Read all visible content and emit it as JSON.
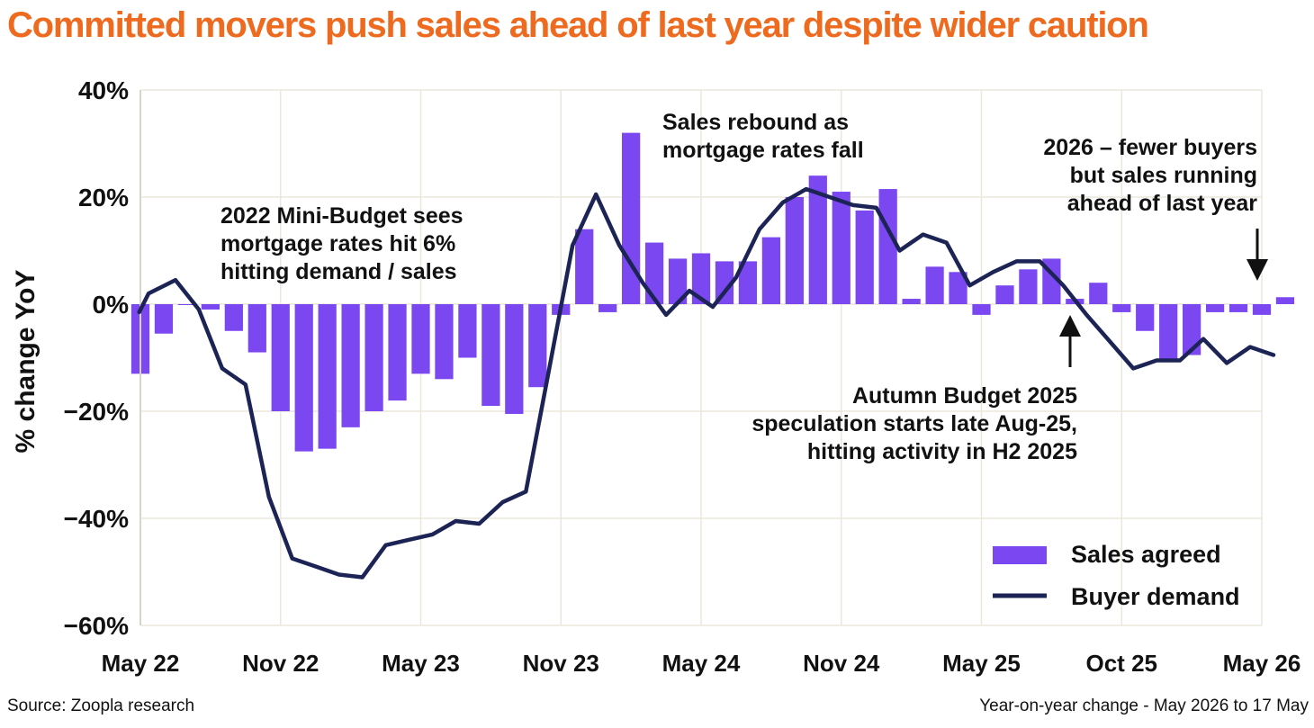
{
  "title": "Committed movers push sales ahead of last year despite wider caution",
  "footer": {
    "source": "Source: Zoopla research",
    "note": "Year-on-year change - May 2026 to 17 May"
  },
  "chart_data": {
    "type": "bar+line",
    "ylabel": "% change YoY",
    "ylim": [
      -60,
      40
    ],
    "xlim": [
      0,
      48
    ],
    "yticks": [
      {
        "value": 40,
        "label": "40%"
      },
      {
        "value": 20,
        "label": "20%"
      },
      {
        "value": 0,
        "label": "0%"
      },
      {
        "value": -20,
        "label": "−20%"
      },
      {
        "value": -40,
        "label": "−40%"
      },
      {
        "value": -60,
        "label": "−60%"
      }
    ],
    "xticks": [
      {
        "month_index": 0,
        "label": "May 22"
      },
      {
        "month_index": 6,
        "label": "Nov 22"
      },
      {
        "month_index": 12,
        "label": "May 23"
      },
      {
        "month_index": 18,
        "label": "Nov 23"
      },
      {
        "month_index": 24,
        "label": "May 24"
      },
      {
        "month_index": 30,
        "label": "Nov 24"
      },
      {
        "month_index": 36,
        "label": "May 25"
      },
      {
        "month_index": 42,
        "label": "Oct 25"
      },
      {
        "month_index": 48,
        "label": "May 26"
      }
    ],
    "grid": true,
    "legend_position": "bottom-right",
    "series": [
      {
        "name": "Sales agreed",
        "type": "bar",
        "color": "#7b47f0",
        "values": [
          -13,
          -5.5,
          0,
          -1,
          -5,
          -9,
          -20,
          -27.5,
          -27,
          -23,
          -20,
          -18,
          -13,
          -14,
          -10,
          -19,
          -20.5,
          -15.5,
          -2,
          14,
          -1.5,
          32,
          11.5,
          8.5,
          9.5,
          8,
          8,
          12.5,
          20,
          24,
          21,
          17.5,
          21.5,
          1,
          7,
          6,
          -2,
          3.5,
          6.5,
          8.5,
          1,
          4,
          -1.5,
          -5,
          -10.5,
          -9.5,
          -1.5,
          -1.5,
          -2,
          1.3
        ]
      },
      {
        "name": "Buyer demand",
        "type": "line",
        "color": "#1c2355",
        "points": [
          [
            -0.05,
            -1.5
          ],
          [
            0.35,
            2
          ],
          [
            1.5,
            4.5
          ],
          [
            2.5,
            -1
          ],
          [
            3.5,
            -12
          ],
          [
            4.5,
            -15
          ],
          [
            5.5,
            -36
          ],
          [
            6.5,
            -47.5
          ],
          [
            7.5,
            -49
          ],
          [
            8.5,
            -50.5
          ],
          [
            9.5,
            -51
          ],
          [
            10.5,
            -45
          ],
          [
            11.5,
            -44
          ],
          [
            12.5,
            -43
          ],
          [
            13.5,
            -40.5
          ],
          [
            14.5,
            -41
          ],
          [
            15.5,
            -37
          ],
          [
            16.5,
            -35
          ],
          [
            17.5,
            -12
          ],
          [
            18.5,
            11
          ],
          [
            19.5,
            20.5
          ],
          [
            20.5,
            11
          ],
          [
            21.5,
            4
          ],
          [
            22.5,
            -2
          ],
          [
            23.5,
            2.5
          ],
          [
            24.5,
            -0.5
          ],
          [
            25.5,
            5
          ],
          [
            26.5,
            14
          ],
          [
            27.5,
            19
          ],
          [
            28.5,
            21.5
          ],
          [
            29.5,
            20
          ],
          [
            30.5,
            18.5
          ],
          [
            31.5,
            18
          ],
          [
            32.5,
            10
          ],
          [
            33.5,
            13
          ],
          [
            34.5,
            11.5
          ],
          [
            35.5,
            3.5
          ],
          [
            36.5,
            6
          ],
          [
            37.5,
            8
          ],
          [
            38.5,
            8
          ],
          [
            39.5,
            3.5
          ],
          [
            40.5,
            -2
          ],
          [
            41.5,
            -7
          ],
          [
            42.5,
            -12
          ],
          [
            43.5,
            -10.5
          ],
          [
            44.5,
            -10.5
          ],
          [
            45.5,
            -6.5
          ],
          [
            46.5,
            -11
          ],
          [
            47.5,
            -8
          ],
          [
            48.5,
            -9.5
          ]
        ]
      }
    ],
    "annotations": [
      {
        "lines": [
          "2022 Mini-Budget sees",
          "mortgage rates hit 6%",
          "hitting demand / sales"
        ]
      },
      {
        "lines": [
          "Sales rebound as",
          "mortgage rates fall"
        ]
      },
      {
        "lines": [
          "2026 – fewer buyers",
          "but sales running",
          "ahead of last year"
        ]
      },
      {
        "lines": [
          "Autumn Budget 2025",
          "speculation starts late Aug-25,",
          "hitting activity in H2 2025"
        ]
      }
    ]
  }
}
